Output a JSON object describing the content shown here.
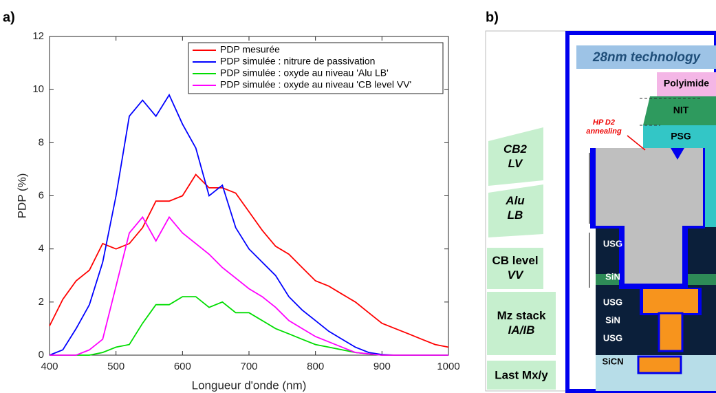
{
  "panel_labels": [
    "a)",
    "b)"
  ],
  "chart_data": {
    "type": "line",
    "x_label": "Longueur d'onde (nm)",
    "y_label": "PDP (%)",
    "x": [
      400,
      420,
      440,
      460,
      480,
      500,
      520,
      540,
      560,
      580,
      600,
      620,
      640,
      660,
      680,
      700,
      720,
      740,
      760,
      780,
      800,
      820,
      840,
      860,
      880,
      900,
      920,
      940,
      960,
      980,
      1000
    ],
    "series": [
      {
        "name": "PDP mesurée",
        "color": "#ff0000",
        "values": [
          1.1,
          2.1,
          2.8,
          3.2,
          4.2,
          4.0,
          4.2,
          4.8,
          5.8,
          5.8,
          6.0,
          6.8,
          6.3,
          6.3,
          6.1,
          5.4,
          4.7,
          4.1,
          3.8,
          3.3,
          2.8,
          2.6,
          2.3,
          2.0,
          1.6,
          1.2,
          1.0,
          0.8,
          0.6,
          0.4,
          0.3
        ]
      },
      {
        "name": "PDP simulée : nitrure de passivation",
        "color": "#0000ff",
        "values": [
          0,
          0.2,
          1.0,
          1.9,
          3.5,
          6.0,
          9.0,
          9.6,
          9.0,
          9.8,
          8.7,
          7.8,
          6.0,
          6.4,
          4.8,
          4.0,
          3.5,
          3.0,
          2.2,
          1.7,
          1.3,
          0.9,
          0.6,
          0.3,
          0.1,
          0.02,
          0,
          0,
          0,
          0,
          0
        ]
      },
      {
        "name": "PDP simulée : oxyde au niveau 'Alu LB'",
        "color": "#00dd00",
        "values": [
          0,
          0,
          0,
          0,
          0.1,
          0.3,
          0.4,
          1.2,
          1.9,
          1.9,
          2.2,
          2.2,
          1.8,
          2.0,
          1.6,
          1.6,
          1.3,
          1.0,
          0.8,
          0.6,
          0.4,
          0.3,
          0.2,
          0.1,
          0.05,
          0,
          0,
          0,
          0,
          0,
          0
        ]
      },
      {
        "name": "PDP simulée : oxyde au niveau 'CB level VV'",
        "color": "#ff00ff",
        "values": [
          0,
          0,
          0,
          0.2,
          0.6,
          2.6,
          4.6,
          5.2,
          4.3,
          5.2,
          4.6,
          4.2,
          3.8,
          3.3,
          2.9,
          2.5,
          2.2,
          1.8,
          1.3,
          1.0,
          0.7,
          0.5,
          0.3,
          0.1,
          0.05,
          0,
          0,
          0,
          0,
          0,
          0
        ]
      }
    ],
    "xlim": [
      400,
      1000
    ],
    "xticks": [
      400,
      500,
      600,
      700,
      800,
      900,
      1000
    ],
    "ylim": [
      0,
      12
    ],
    "yticks": [
      0,
      2,
      4,
      6,
      8,
      10,
      12
    ],
    "legend": "upper right"
  },
  "diagram": {
    "header": "28nm technology",
    "layers": [
      "Polyimide",
      "NIT",
      "PSG"
    ],
    "annotation": [
      "HP D2",
      "annealing"
    ],
    "left_blocks": [
      [
        "CB2",
        "LV"
      ],
      [
        "Alu",
        "LB"
      ],
      [
        "CB level",
        "VV"
      ],
      [
        "Mz stack",
        "IA/IB"
      ],
      [
        "Last Mx/y"
      ]
    ],
    "stack_labels": [
      "USG",
      "SiN",
      "USG",
      "SiN",
      "USG",
      "SiCN"
    ]
  }
}
